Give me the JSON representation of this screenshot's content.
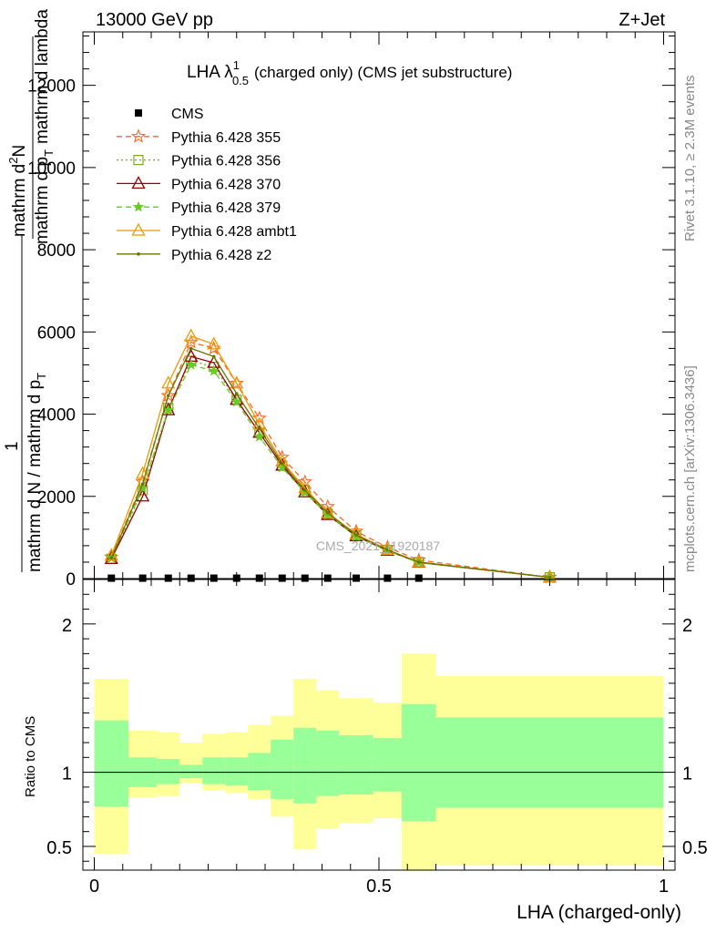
{
  "header": {
    "energy_label": "13000 GeV pp",
    "process_label": "Z+Jet"
  },
  "side": {
    "rivet_label": "Rivet 3.1.10, ≥ 2.3M events",
    "mcplots_label": "mcplots.cern.ch [arXiv:1306.3436]"
  },
  "watermark": "CMS_2021_I1920187",
  "chart_data": [
    {
      "type": "line",
      "title_main": "LHA λ",
      "title_sup": "1",
      "title_sub": "0.5",
      "title_rest": "(charged only) (CMS jet substructure)",
      "ylabel_num_top": "mathrm d",
      "ylabel_num_sup": "2",
      "ylabel_num_rest": "N",
      "ylabel_den_a": "mathrm d p",
      "ylabel_den_sub": "T",
      "ylabel_den_b": "mathrm d lambda",
      "ylabel_one": "1",
      "ylabel_den_bottom": "mathrm d N / mathrm d p",
      "ylabel_den_bottom_sub": "T",
      "xlim": [
        -0.02,
        1.02
      ],
      "ylim": [
        0,
        13300
      ],
      "yticks": [
        "0",
        "2000",
        "4000",
        "6000",
        "8000",
        "10000",
        "12000"
      ],
      "ytick_values": [
        0,
        2000,
        4000,
        6000,
        8000,
        10000,
        12000
      ],
      "x": [
        0.03,
        0.085,
        0.13,
        0.17,
        0.21,
        0.25,
        0.29,
        0.33,
        0.37,
        0.41,
        0.46,
        0.515,
        0.57,
        0.8
      ],
      "series": [
        {
          "name": "CMS",
          "color": "#000000",
          "marker": "square",
          "dash": "none",
          "values": [
            10,
            10,
            10,
            10,
            10,
            10,
            10,
            10,
            10,
            10,
            10,
            10,
            10,
            null
          ]
        },
        {
          "name": "Pythia 6.428 355",
          "color": "#ff6622",
          "marker": "star",
          "dash": "6,4",
          "values": [
            520,
            2350,
            4450,
            5750,
            5600,
            4750,
            3900,
            2950,
            2350,
            1750,
            1150,
            760,
            450,
            30
          ]
        },
        {
          "name": "Pythia 6.428 356",
          "color": "#77aa22",
          "marker": "opensquare",
          "dash": "2,3",
          "values": [
            480,
            2150,
            4150,
            5300,
            5150,
            4350,
            3550,
            2750,
            2150,
            1580,
            1050,
            690,
            400,
            30
          ]
        },
        {
          "name": "Pythia 6.428 370",
          "color": "#990000",
          "marker": "triangle",
          "dash": "none",
          "values": [
            480,
            2000,
            4100,
            5400,
            5250,
            4350,
            3550,
            2750,
            2100,
            1550,
            1030,
            680,
            390,
            30
          ]
        },
        {
          "name": "Pythia 6.428 379",
          "color": "#66cc22",
          "marker": "smallstar",
          "dash": "6,4",
          "values": [
            500,
            2200,
            4100,
            5200,
            5050,
            4300,
            3450,
            2700,
            2100,
            1550,
            1020,
            680,
            390,
            30
          ]
        },
        {
          "name": "Pythia 6.428 ambt1",
          "color": "#ee9900",
          "marker": "triangle",
          "dash": "none",
          "values": [
            560,
            2550,
            4750,
            5900,
            5700,
            4750,
            3750,
            2850,
            2200,
            1600,
            1080,
            700,
            400,
            30
          ]
        },
        {
          "name": "Pythia 6.428 z2",
          "color": "#667700",
          "marker": "dot",
          "dash": "none",
          "values": [
            500,
            2300,
            4450,
            5600,
            5400,
            4500,
            3650,
            2800,
            2150,
            1600,
            1060,
            700,
            400,
            30
          ]
        }
      ]
    },
    {
      "type": "area",
      "ylabel": "Ratio to CMS",
      "xlabel": "LHA (charged-only)",
      "xlim": [
        -0.02,
        1.02
      ],
      "ylim": [
        0.34,
        2.3
      ],
      "xticks": [
        "0",
        "0.5",
        "1"
      ],
      "xtick_values": [
        0,
        0.5,
        1
      ],
      "yticks": [
        "0.5",
        "1",
        "2"
      ],
      "ytick_values": [
        0.5,
        1,
        2
      ],
      "bins": [
        0,
        0.06,
        0.11,
        0.15,
        0.19,
        0.23,
        0.27,
        0.31,
        0.35,
        0.39,
        0.43,
        0.49,
        0.54,
        0.6,
        1.0
      ],
      "yellow_upper": [
        1.63,
        1.28,
        1.27,
        1.2,
        1.26,
        1.27,
        1.32,
        1.38,
        1.63,
        1.55,
        1.5,
        1.47,
        1.8,
        1.65
      ],
      "yellow_lower": [
        0.45,
        0.83,
        0.84,
        0.93,
        0.88,
        0.86,
        0.82,
        0.7,
        0.48,
        0.62,
        0.66,
        0.69,
        0.34,
        0.37
      ],
      "green_upper": [
        1.35,
        1.1,
        1.09,
        1.05,
        1.1,
        1.1,
        1.13,
        1.22,
        1.3,
        1.28,
        1.25,
        1.23,
        1.46,
        1.37
      ],
      "green_lower": [
        0.77,
        0.9,
        0.92,
        0.96,
        0.92,
        0.91,
        0.88,
        0.82,
        0.79,
        0.84,
        0.85,
        0.87,
        0.67,
        0.76
      ],
      "yellow_color": "#ffff99",
      "green_color": "#99ff99"
    }
  ]
}
